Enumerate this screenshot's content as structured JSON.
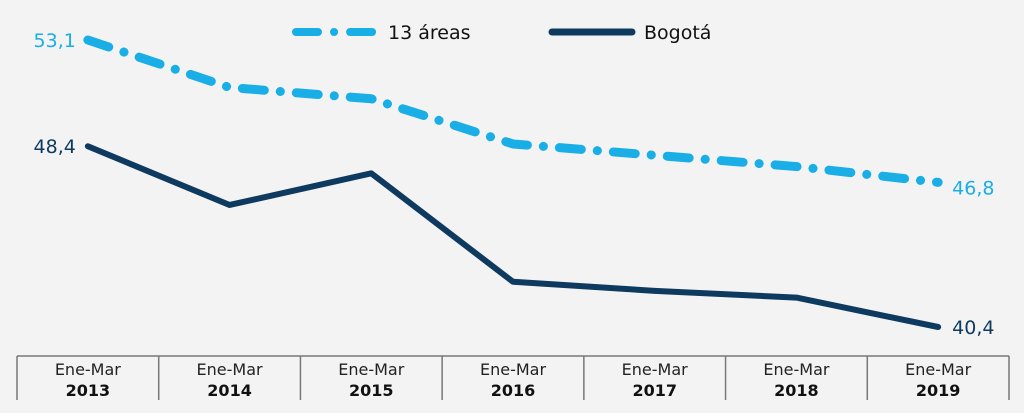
{
  "chart_data": {
    "type": "line",
    "categories": [
      {
        "line1": "Ene-Mar",
        "line2": "2013"
      },
      {
        "line1": "Ene-Mar",
        "line2": "2014"
      },
      {
        "line1": "Ene-Mar",
        "line2": "2015"
      },
      {
        "line1": "Ene-Mar",
        "line2": "2016"
      },
      {
        "line1": "Ene-Mar",
        "line2": "2017"
      },
      {
        "line1": "Ene-Mar",
        "line2": "2018"
      },
      {
        "line1": "Ene-Mar",
        "line2": "2019"
      }
    ],
    "series": [
      {
        "name": "13 áreas",
        "color": "#1aaee6",
        "style": "dash-dot",
        "values": [
          53.1,
          51.0,
          50.5,
          48.5,
          48.0,
          47.5,
          46.8
        ],
        "first_label": "53,1",
        "last_label": "46,8"
      },
      {
        "name": "Bogotá",
        "color": "#0e3a5f",
        "style": "solid",
        "values": [
          48.4,
          45.8,
          47.2,
          42.4,
          42.0,
          41.7,
          40.4
        ],
        "first_label": "48,4",
        "last_label": "40,4"
      }
    ],
    "legend_position": "top-center",
    "ylim": [
      40.4,
      53.1
    ],
    "grid": false
  }
}
